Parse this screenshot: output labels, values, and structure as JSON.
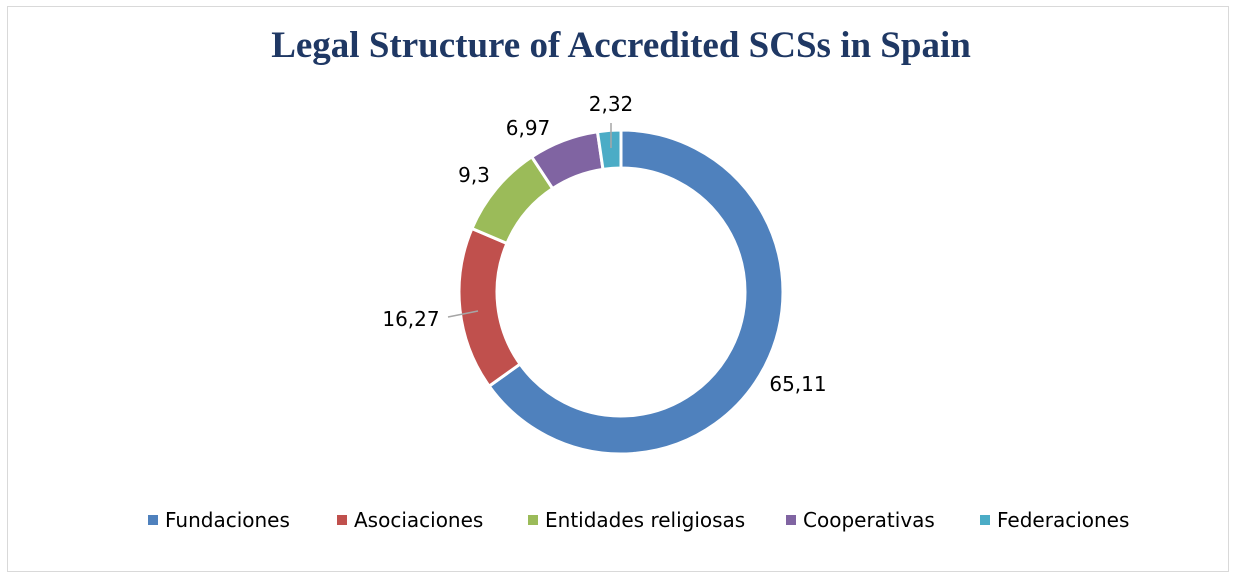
{
  "chart_data": {
    "type": "pie",
    "subtype": "doughnut",
    "title": "Legal Structure of Accredited SCSs in Spain",
    "categories": [
      "Fundaciones",
      "Asociaciones",
      "Entidades religiosas",
      "Cooperativas",
      "Federaciones"
    ],
    "values": [
      65.11,
      16.27,
      9.3,
      6.97,
      2.32
    ],
    "value_labels": [
      "65,11",
      "16,27",
      "9,3",
      "6,97",
      "2,32"
    ],
    "colors": [
      "#4f81bd",
      "#c0504d",
      "#9bbb59",
      "#8064a2",
      "#4bacc6"
    ],
    "legend_position": "bottom"
  }
}
